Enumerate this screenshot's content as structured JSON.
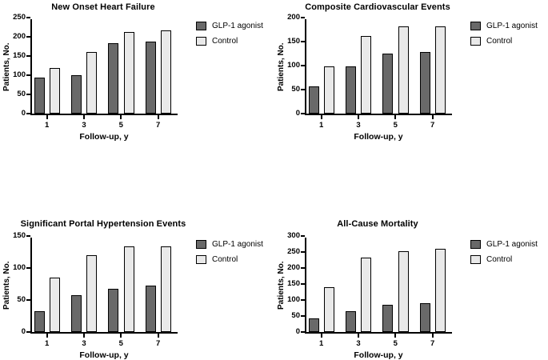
{
  "figure": {
    "colors": {
      "glp1_fill": "#696969",
      "control_fill": "#e9e9e9",
      "axis": "#000000",
      "background": "#ffffff"
    }
  },
  "chart_data": [
    {
      "type": "bar",
      "title": "New Onset Heart Failure",
      "xlabel": "Follow-up, y",
      "ylabel": "Patients, No.",
      "categories": [
        "1",
        "3",
        "5",
        "7"
      ],
      "series": [
        {
          "name": "GLP-1 agonist",
          "values": [
            93,
            99,
            184,
            187
          ]
        },
        {
          "name": "Control",
          "values": [
            119,
            161,
            212,
            216
          ]
        }
      ],
      "ylim": [
        0,
        250
      ],
      "ytick_step": 50,
      "grid": false,
      "legend_position": "right"
    },
    {
      "type": "bar",
      "title": "Composite Cardiovascular Events",
      "xlabel": "Follow-up, y",
      "ylabel": "Patients, No.",
      "categories": [
        "1",
        "3",
        "5",
        "7"
      ],
      "series": [
        {
          "name": "GLP-1 agonist",
          "values": [
            57,
            99,
            125,
            129
          ]
        },
        {
          "name": "Control",
          "values": [
            98,
            162,
            181,
            182
          ]
        }
      ],
      "ylim": [
        0,
        200
      ],
      "ytick_step": 50,
      "grid": false,
      "legend_position": "right"
    },
    {
      "type": "bar",
      "title": "Significant Portal Hypertension Events",
      "xlabel": "Follow-up, y",
      "ylabel": "Patients, No.",
      "categories": [
        "1",
        "3",
        "5",
        "7"
      ],
      "series": [
        {
          "name": "GLP-1 agonist",
          "values": [
            33,
            58,
            68,
            72
          ]
        },
        {
          "name": "Control",
          "values": [
            85,
            120,
            134,
            134
          ]
        }
      ],
      "ylim": [
        0,
        150
      ],
      "ytick_step": 50,
      "grid": false,
      "legend_position": "right"
    },
    {
      "type": "bar",
      "title": "All-Cause Mortality",
      "xlabel": "Follow-up, y",
      "ylabel": "Patients, No.",
      "categories": [
        "1",
        "3",
        "5",
        "7"
      ],
      "series": [
        {
          "name": "GLP-1 agonist",
          "values": [
            43,
            66,
            85,
            90
          ]
        },
        {
          "name": "Control",
          "values": [
            140,
            232,
            253,
            260
          ]
        }
      ],
      "ylim": [
        0,
        300
      ],
      "ytick_step": 50,
      "grid": false,
      "legend_position": "right"
    }
  ]
}
